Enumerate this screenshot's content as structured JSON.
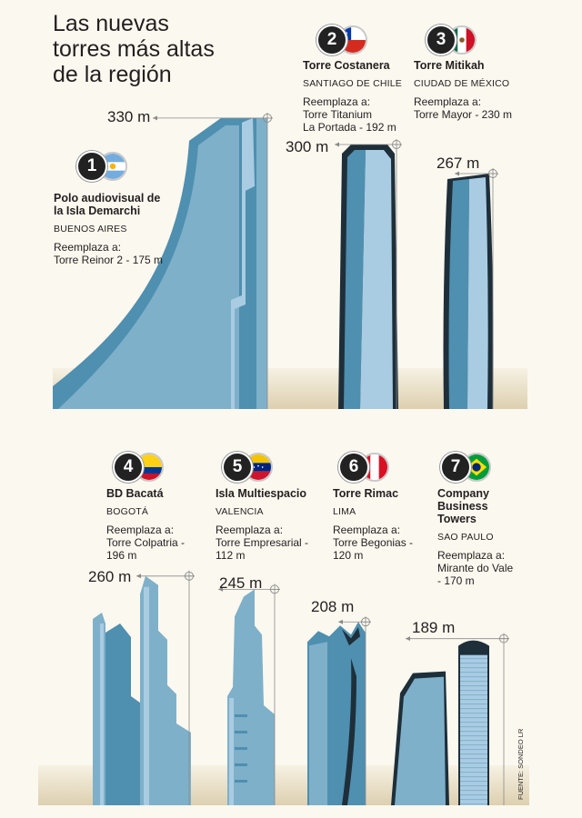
{
  "title_lines": [
    "Las nuevas",
    "torres más altas",
    "de la región"
  ],
  "source": "FUENTE: SONDEO LR",
  "colors": {
    "tower_light": "#a9cce3",
    "tower_mid": "#7fb0c9",
    "tower_dark": "#4f8fb0",
    "tower_deep": "#1e2f3a",
    "line": "#8a8a8a",
    "badge": "#222222"
  },
  "chart_data": {
    "type": "bar",
    "title": "Las nuevas torres más altas de la región",
    "unit": "m",
    "categories": [
      "Polo audiovisual de la Isla Demarchi",
      "Torre Costanera",
      "Torre Mitikah",
      "BD Bacatá",
      "Isla Multiespacio",
      "Torre Rimac",
      "Company Business Towers"
    ],
    "values": [
      330,
      300,
      267,
      260,
      245,
      208,
      189
    ],
    "replaced_values": [
      175,
      192,
      230,
      196,
      112,
      120,
      170
    ]
  },
  "towers": [
    {
      "rank": "1",
      "name_lines": [
        "Polo audiovisual de",
        "la Isla Demarchi"
      ],
      "city": "BUENOS AIRES",
      "replaces_label": "Reemplaza a:",
      "replaces_lines": [
        "Torre Reinor 2 - 175 m"
      ],
      "height_label": "330 m",
      "flag_icon": "argentina-flag-icon"
    },
    {
      "rank": "2",
      "name_lines": [
        "Torre Costanera"
      ],
      "city": "SANTIAGO DE CHILE",
      "replaces_label": "Reemplaza a:",
      "replaces_lines": [
        "Torre Titanium",
        "La Portada - 192 m"
      ],
      "height_label": "300 m",
      "flag_icon": "chile-flag-icon"
    },
    {
      "rank": "3",
      "name_lines": [
        "Torre Mitikah"
      ],
      "city": "CIUDAD DE MÉXICO",
      "replaces_label": "Reemplaza a:",
      "replaces_lines": [
        "Torre Mayor - 230 m"
      ],
      "height_label": "267 m",
      "flag_icon": "mexico-flag-icon"
    },
    {
      "rank": "4",
      "name_lines": [
        "BD Bacatá"
      ],
      "city": "BOGOTÁ",
      "replaces_label": "Reemplaza a:",
      "replaces_lines": [
        "Torre Colpatria -",
        "196 m"
      ],
      "height_label": "260 m",
      "flag_icon": "colombia-flag-icon"
    },
    {
      "rank": "5",
      "name_lines": [
        "Isla Multiespacio"
      ],
      "city": "VALENCIA",
      "replaces_label": "Reemplaza a:",
      "replaces_lines": [
        "Torre Empresarial -",
        "112 m"
      ],
      "height_label": "245 m",
      "flag_icon": "venezuela-flag-icon"
    },
    {
      "rank": "6",
      "name_lines": [
        "Torre Rimac"
      ],
      "city": "LIMA",
      "replaces_label": "Reemplaza a:",
      "replaces_lines": [
        "Torre Begonias -",
        "120 m"
      ],
      "height_label": "208 m",
      "flag_icon": "peru-flag-icon"
    },
    {
      "rank": "7",
      "name_lines": [
        "Company",
        "Business",
        "Towers"
      ],
      "city": "SAO PAULO",
      "replaces_label": "Reemplaza a:",
      "replaces_lines": [
        "Mirante do Vale",
        "- 170 m"
      ],
      "height_label": "189 m",
      "flag_icon": "brazil-flag-icon"
    }
  ]
}
